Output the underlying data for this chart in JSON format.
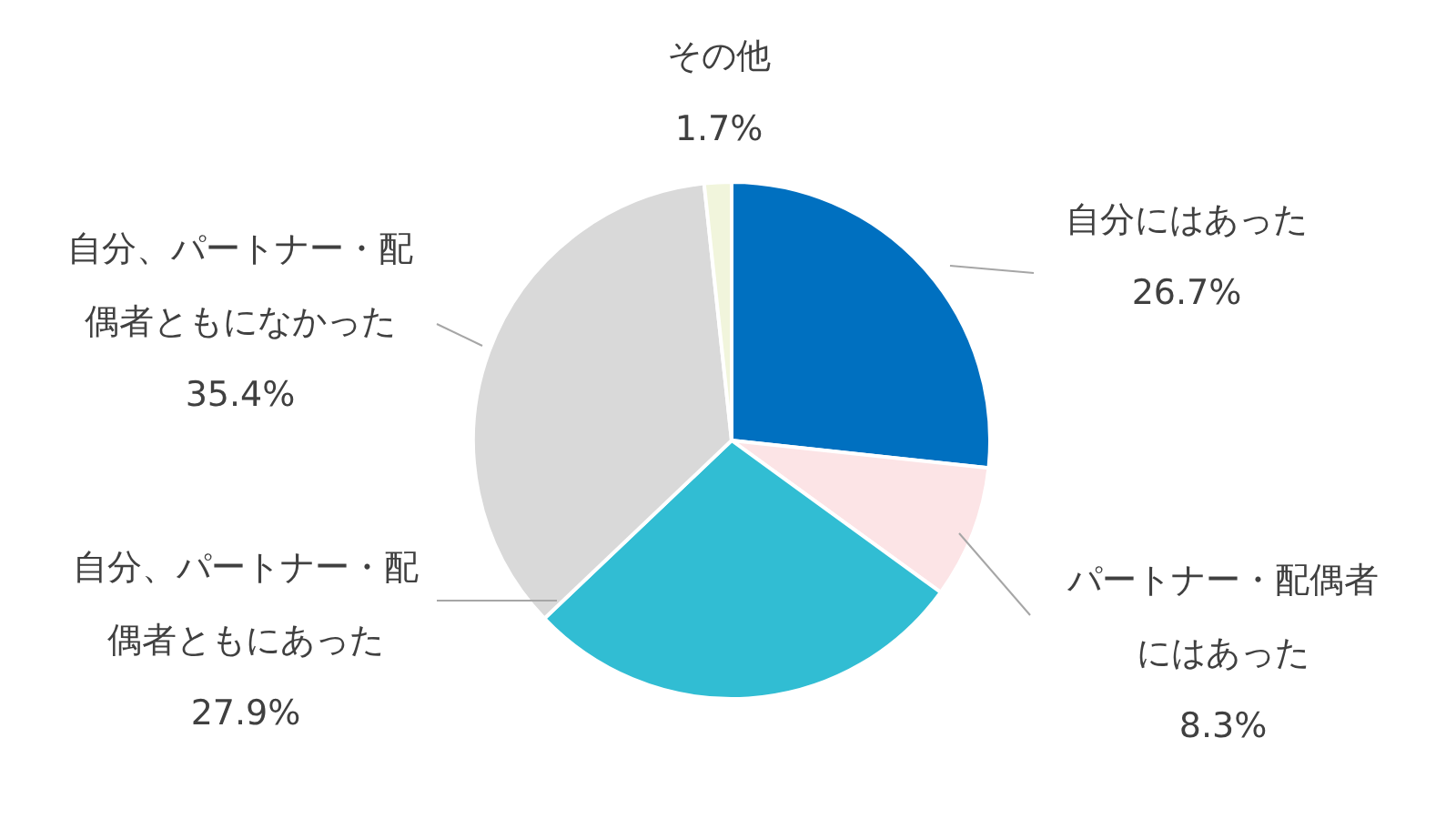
{
  "chart_data": {
    "type": "pie",
    "categories": [
      "自分にはあった",
      "パートナー・配偶者にはあった",
      "自分、パートナー・配偶者ともにあった",
      "自分、パートナー・配偶者ともになかった",
      "その他"
    ],
    "values": [
      26.7,
      8.3,
      27.9,
      35.4,
      1.7
    ],
    "colors": [
      "#0070c0",
      "#fce4e6",
      "#31bdd3",
      "#d9d9d9",
      "#f1f5dc"
    ],
    "value_labels": [
      "26.7%",
      "8.3%",
      "27.9%",
      "35.4%",
      "1.7%"
    ]
  }
}
